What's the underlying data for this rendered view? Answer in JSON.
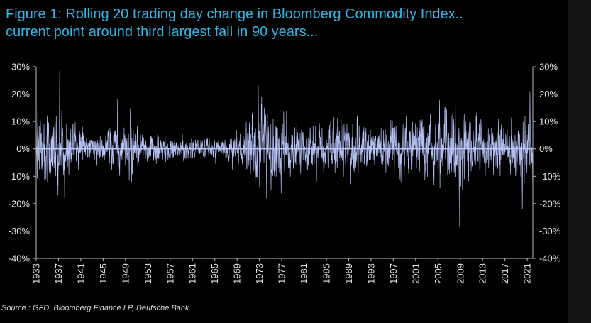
{
  "title": {
    "line1": "Figure 1: Rolling 20 trading day change in Bloomberg Commodity Index..",
    "line2": "current point around third largest fall in 90 years..."
  },
  "source": "Source : GFD, Bloomberg Finance LP, Deutsche Bank",
  "colors": {
    "title": "#2eb8e6",
    "series": "#bcc9ff",
    "axis": "#bdbdbd",
    "background": "#000000"
  },
  "chart_data": {
    "type": "line",
    "grid": false,
    "legend": "none",
    "xlim": [
      1933,
      2022
    ],
    "ylim": [
      -40,
      30
    ],
    "y_ticks": [
      "30%",
      "20%",
      "10%",
      "0%",
      "-10%",
      "-20%",
      "-30%",
      "-40%"
    ],
    "y_tick_values": [
      30,
      20,
      10,
      0,
      -10,
      -20,
      -30,
      -40
    ],
    "x_ticks": [
      "1933",
      "1937",
      "1941",
      "1945",
      "1949",
      "1953",
      "1957",
      "1961",
      "1965",
      "1969",
      "1973",
      "1977",
      "1981",
      "1985",
      "1989",
      "1993",
      "1997",
      "2001",
      "2005",
      "2009",
      "2013",
      "2017",
      "2021"
    ],
    "x_tick_values": [
      1933,
      1937,
      1941,
      1945,
      1949,
      1953,
      1957,
      1961,
      1965,
      1969,
      1973,
      1977,
      1981,
      1985,
      1989,
      1993,
      1997,
      2001,
      2005,
      2009,
      2013,
      2017,
      2021
    ],
    "amplitude_profile": {
      "x": [
        1933,
        1936,
        1939,
        1942,
        1945,
        1948,
        1950,
        1952,
        1955,
        1958,
        1961,
        1964,
        1967,
        1970,
        1972,
        1974,
        1976,
        1978,
        1981,
        1984,
        1987,
        1990,
        1993,
        1996,
        1999,
        2002,
        2005,
        2008,
        2011,
        2014,
        2017,
        2019,
        2021
      ],
      "y": [
        7,
        6,
        5,
        3,
        2.5,
        4,
        5,
        3,
        2.5,
        2,
        2,
        1.8,
        2,
        3,
        6,
        8,
        6,
        5,
        5,
        4.5,
        4.5,
        4.5,
        4,
        4,
        5,
        5,
        6,
        7,
        6,
        5,
        4,
        4,
        6
      ]
    },
    "highlights": [
      {
        "x": 1933.3,
        "y": 18
      },
      {
        "x": 1934.2,
        "y": -12
      },
      {
        "x": 1936.6,
        "y": 12
      },
      {
        "x": 1937.2,
        "y": 28.5
      },
      {
        "x": 1937.6,
        "y": 14
      },
      {
        "x": 1938.1,
        "y": -18
      },
      {
        "x": 1941.3,
        "y": 8
      },
      {
        "x": 1947.6,
        "y": 18
      },
      {
        "x": 1950.4,
        "y": 7
      },
      {
        "x": 1972.8,
        "y": 23
      },
      {
        "x": 1973.4,
        "y": 19
      },
      {
        "x": 1973.9,
        "y": 15
      },
      {
        "x": 1974.3,
        "y": -18
      },
      {
        "x": 1975.1,
        "y": -15
      },
      {
        "x": 1979.7,
        "y": 10
      },
      {
        "x": 1980.4,
        "y": -9
      },
      {
        "x": 1998.2,
        "y": -11
      },
      {
        "x": 2008.1,
        "y": 17
      },
      {
        "x": 2008.6,
        "y": -19
      },
      {
        "x": 2008.9,
        "y": -28.5
      },
      {
        "x": 2009.4,
        "y": -15
      },
      {
        "x": 2020.1,
        "y": -22
      },
      {
        "x": 2021.5,
        "y": 21
      },
      {
        "x": 2022.0,
        "y": -18
      }
    ]
  }
}
